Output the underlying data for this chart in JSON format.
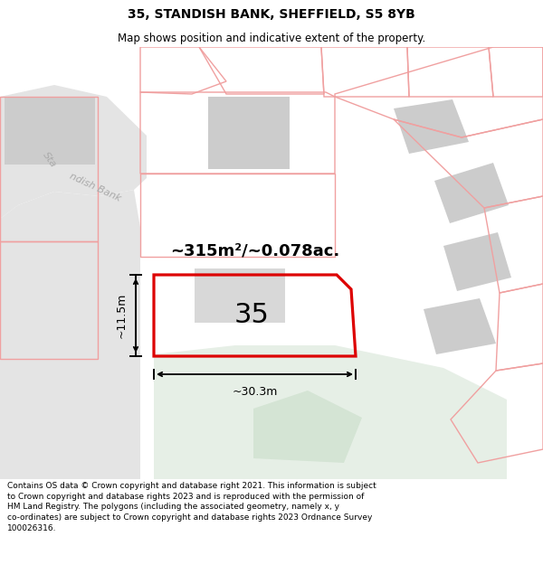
{
  "title": "35, STANDISH BANK, SHEFFIELD, S5 8YB",
  "subtitle": "Map shows position and indicative extent of the property.",
  "footer": "Contains OS data © Crown copyright and database right 2021. This information is subject to Crown copyright and database rights 2023 and is reproduced with the permission of HM Land Registry. The polygons (including the associated geometry, namely x, y co-ordinates) are subject to Crown copyright and database rights 2023 Ordnance Survey 100026316.",
  "area_text": "~315m²/~0.078ac.",
  "number_text": "35",
  "width_text": "~30.3m",
  "height_text": "~11.5m",
  "road_label_1": "Sta",
  "road_label_2": "ndish Bank",
  "map_bg": "#f7f7f7",
  "plot_bg": "#ffffff",
  "red_color": "#dd0000",
  "pink_color": "#f0a0a0",
  "gray_block": "#cccccc",
  "gray_block2": "#d8d8d8",
  "green_area": "#e6efe6",
  "road_fill": "#e4e4e4",
  "title_fontsize": 10,
  "subtitle_fontsize": 8.5,
  "footer_fontsize": 6.5
}
